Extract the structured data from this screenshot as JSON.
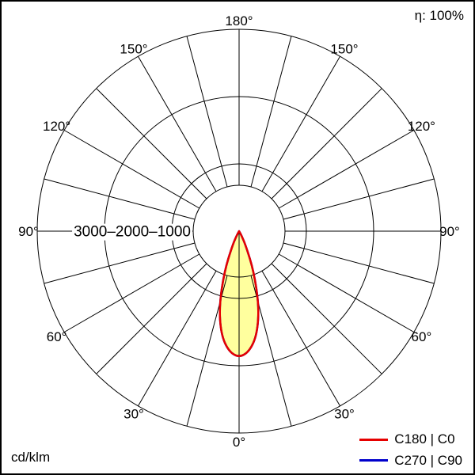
{
  "labels": {
    "efficiency": "η: 100%",
    "unit": "cd/klm"
  },
  "legend": [
    {
      "label": "C180 | C0",
      "color": "#e60000"
    },
    {
      "label": "C270 | C90",
      "color": "#0000cc"
    }
  ],
  "chart_data": {
    "type": "polar",
    "subtype": "luminous-intensity-distribution",
    "unit": "cd/klm",
    "efficiency_label": "η: 100%",
    "angle_ticks_deg": [
      0,
      30,
      60,
      90,
      120,
      150,
      180
    ],
    "angle_tick_labels": [
      "0°",
      "30°",
      "60°",
      "90°",
      "120°",
      "150°",
      "180°"
    ],
    "spoke_step_deg": 15,
    "radial_ticks": [
      1000,
      2000,
      3000
    ],
    "radial_tick_text": "3000–2000–1000",
    "r_max": 3000,
    "grid_color": "#000000",
    "curve_fill": "#ffff9e",
    "legend_position": "bottom-right",
    "series": [
      {
        "name": "C180 | C0",
        "color": "#e60000",
        "angles_deg": [
          0,
          5,
          10,
          15,
          20,
          25,
          30,
          35,
          45,
          60,
          90,
          120,
          150,
          180
        ],
        "values_cd_per_klm": [
          1880,
          1790,
          1550,
          1140,
          640,
          240,
          60,
          0,
          0,
          0,
          0,
          0,
          0,
          0
        ]
      },
      {
        "name": "C270 | C90",
        "color": "#0000cc",
        "angles_deg": [
          0,
          5,
          10,
          15,
          20,
          25,
          30,
          35,
          45,
          60,
          90,
          120,
          150,
          180
        ],
        "values_cd_per_klm": [
          1880,
          1790,
          1550,
          1140,
          640,
          240,
          60,
          0,
          0,
          0,
          0,
          0,
          0,
          0
        ]
      }
    ]
  }
}
